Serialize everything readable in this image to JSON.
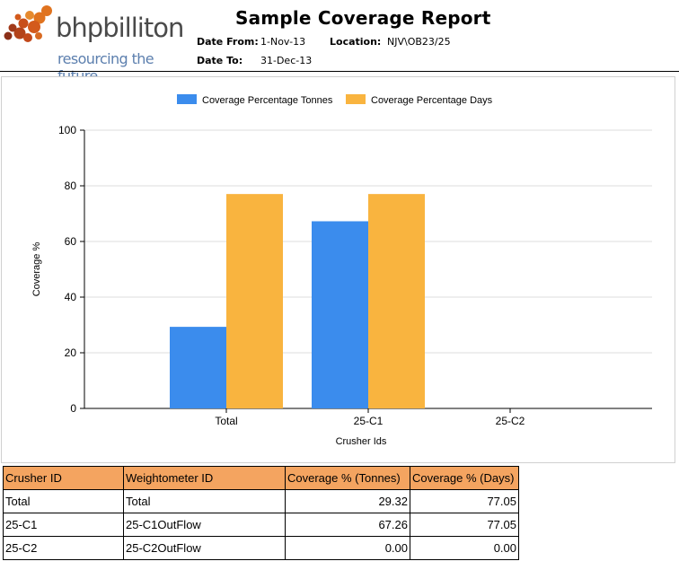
{
  "logo": {
    "brand": "bhpbilliton",
    "tagline": "resourcing the future"
  },
  "report": {
    "title": "Sample Coverage Report",
    "date_from_label": "Date From:",
    "date_from": "1-Nov-13",
    "date_to_label": "Date To:",
    "date_to": "31-Dec-13",
    "location_label": "Location:",
    "location": "NJV\\OB23/25"
  },
  "colors": {
    "tonnes": "#3b8ced",
    "days": "#f9b43f",
    "table_header": "#f4a460"
  },
  "chart_data": {
    "type": "bar",
    "categories": [
      "Total",
      "25-C1",
      "25-C2"
    ],
    "series": [
      {
        "name": "Coverage Percentage Tonnes",
        "values": [
          29.32,
          67.26,
          0.0
        ]
      },
      {
        "name": "Coverage Percentage Days",
        "values": [
          77.05,
          77.05,
          0.0
        ]
      }
    ],
    "xlabel": "Crusher Ids",
    "ylabel": "Coverage %",
    "ylim": [
      0,
      100
    ],
    "yticks": [
      0,
      20,
      40,
      60,
      80,
      100
    ],
    "grid": true,
    "legend": "top"
  },
  "table": {
    "headers": [
      "Crusher ID",
      "Weightometer ID",
      "Coverage % (Tonnes)",
      "Coverage % (Days)"
    ],
    "rows": [
      [
        "Total",
        "Total",
        "29.32",
        "77.05"
      ],
      [
        "25-C1",
        "25-C1OutFlow",
        "67.26",
        "77.05"
      ],
      [
        "25-C2",
        "25-C2OutFlow",
        "0.00",
        "0.00"
      ]
    ]
  }
}
